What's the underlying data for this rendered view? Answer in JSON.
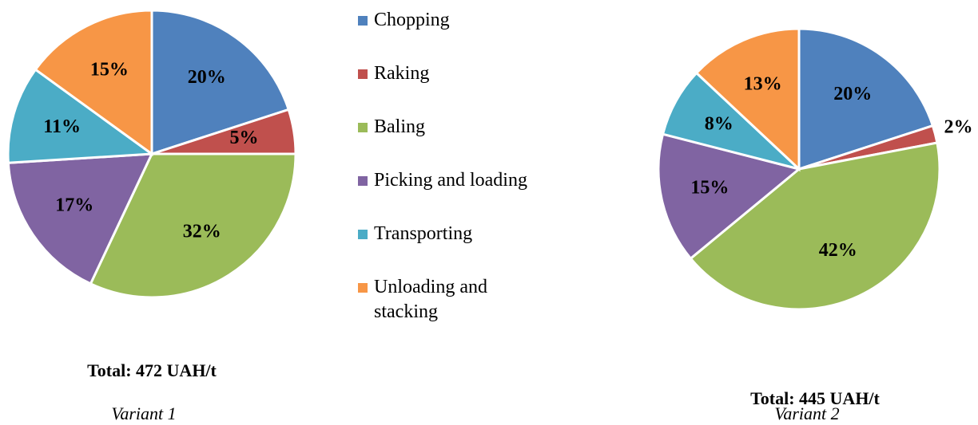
{
  "chart_data": [
    {
      "type": "pie",
      "categories": [
        "Chopping",
        "Raking",
        "Baling",
        "Picking and loading",
        "Transporting",
        "Unloading and stacking"
      ],
      "values": [
        20,
        5,
        32,
        17,
        11,
        15
      ],
      "value_labels": [
        "20%",
        "5%",
        "32%",
        "17%",
        "11%",
        "15%"
      ],
      "colors": [
        "#4f81bd",
        "#c0504d",
        "#9bbb59",
        "#8064a2",
        "#4bacc6",
        "#f79646"
      ],
      "total": "Total: 472 UAH/t",
      "caption": "Variant 1"
    },
    {
      "type": "pie",
      "categories": [
        "Chopping",
        "Raking",
        "Baling",
        "Picking and loading",
        "Transporting",
        "Unloading and stacking"
      ],
      "values": [
        20,
        2,
        42,
        15,
        8,
        13
      ],
      "value_labels": [
        "20%",
        "2%",
        "42%",
        "15%",
        "8%",
        "13%"
      ],
      "colors": [
        "#4f81bd",
        "#c0504d",
        "#9bbb59",
        "#8064a2",
        "#4bacc6",
        "#f79646"
      ],
      "total": "Total: 445 UAH/t",
      "caption": "Variant 2"
    }
  ]
}
